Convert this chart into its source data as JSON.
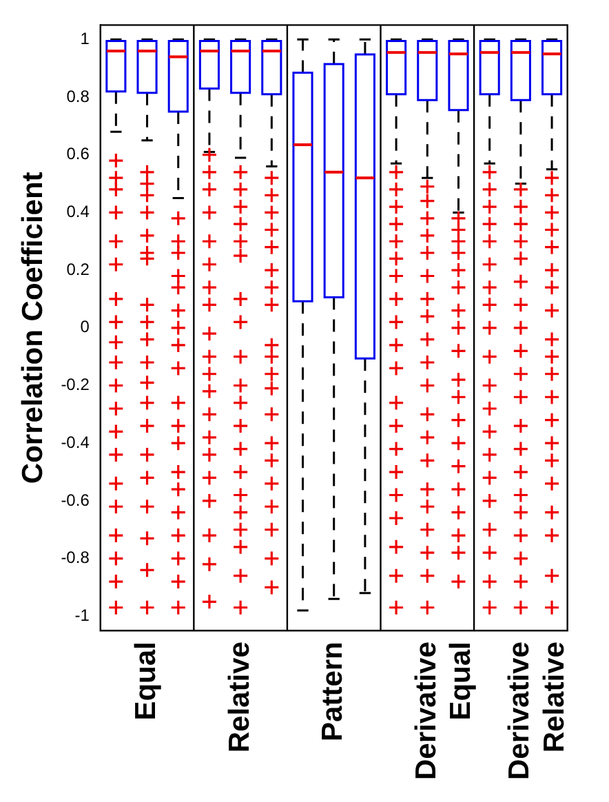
{
  "chart_data": {
    "type": "box",
    "ylabel": "Correlation Coefficient",
    "categories": [
      null,
      "Equal",
      null,
      null,
      "Relative",
      null,
      null,
      "Pattern",
      null,
      null,
      "Derivative\nEqual",
      null,
      null,
      "Derivative\nRelative",
      null
    ],
    "ylim": [
      -1.05,
      1.05
    ],
    "yticks": [
      -1,
      -0.8,
      -0.6,
      -0.4,
      -0.2,
      0,
      0.2,
      0.4,
      0.6,
      0.8,
      1
    ],
    "grid": false,
    "boxes": [
      {
        "low": 0.68,
        "q1": 0.82,
        "median": 0.96,
        "q3": 0.995,
        "high": 1,
        "outliers": [
          0.58,
          0.52,
          0.48,
          0.4,
          0.3,
          0.22,
          0.1,
          0.02,
          -0.05,
          -0.12,
          -0.2,
          -0.28,
          -0.36,
          -0.44,
          -0.54,
          -0.62,
          -0.72,
          -0.8,
          -0.88,
          -0.97
        ]
      },
      {
        "low": 0.65,
        "q1": 0.815,
        "median": 0.96,
        "q3": 0.995,
        "high": 1,
        "outliers": [
          0.54,
          0.5,
          0.46,
          0.4,
          0.32,
          0.26,
          0.24,
          0.08,
          0.02,
          -0.04,
          -0.12,
          -0.19,
          -0.26,
          -0.34,
          -0.44,
          -0.52,
          -0.62,
          -0.73,
          -0.84,
          -0.97
        ]
      },
      {
        "low": 0.45,
        "q1": 0.75,
        "median": 0.94,
        "q3": 0.995,
        "high": 1,
        "outliers": [
          0.38,
          0.3,
          0.26,
          0.18,
          0.14,
          0.06,
          0,
          -0.06,
          -0.14,
          -0.26,
          -0.34,
          -0.4,
          -0.5,
          -0.56,
          -0.64,
          -0.72,
          -0.8,
          -0.88,
          -0.97
        ]
      },
      {
        "low": 0.61,
        "q1": 0.83,
        "median": 0.96,
        "q3": 0.995,
        "high": 1,
        "outliers": [
          0.6,
          0.54,
          0.48,
          0.4,
          0.3,
          0.22,
          0.14,
          0.08,
          -0.02,
          -0.1,
          -0.16,
          -0.22,
          -0.3,
          -0.38,
          -0.44,
          -0.52,
          -0.6,
          -0.72,
          -0.82,
          -0.95
        ]
      },
      {
        "low": 0.59,
        "q1": 0.815,
        "median": 0.96,
        "q3": 0.995,
        "high": 1,
        "outliers": [
          0.54,
          0.48,
          0.42,
          0.36,
          0.3,
          0.25,
          0.1,
          0.02,
          -0.1,
          -0.2,
          -0.26,
          -0.34,
          -0.42,
          -0.5,
          -0.58,
          -0.64,
          -0.7,
          -0.76,
          -0.86,
          -0.97
        ]
      },
      {
        "low": 0.56,
        "q1": 0.81,
        "median": 0.96,
        "q3": 0.995,
        "high": 1,
        "outliers": [
          0.52,
          0.46,
          0.4,
          0.34,
          0.28,
          0.2,
          0.14,
          0.08,
          -0.06,
          -0.1,
          -0.16,
          -0.21,
          -0.3,
          -0.4,
          -0.46,
          -0.54,
          -0.62,
          -0.7,
          -0.8,
          -0.9
        ]
      },
      {
        "low": -0.98,
        "q1": 0.092,
        "median": 0.635,
        "q3": 0.885,
        "high": 1
      },
      {
        "low": -0.94,
        "q1": 0.106,
        "median": 0.54,
        "q3": 0.915,
        "high": 1
      },
      {
        "low": -0.92,
        "q1": -0.106,
        "median": 0.52,
        "q3": 0.948,
        "high": 1
      },
      {
        "low": 0.57,
        "q1": 0.81,
        "median": 0.955,
        "q3": 0.995,
        "high": 1,
        "outliers": [
          0.54,
          0.48,
          0.42,
          0.36,
          0.3,
          0.24,
          0.18,
          0.1,
          0.02,
          -0.06,
          -0.14,
          -0.26,
          -0.34,
          -0.42,
          -0.5,
          -0.58,
          -0.66,
          -0.76,
          -0.86,
          -0.97
        ]
      },
      {
        "low": 0.52,
        "q1": 0.79,
        "median": 0.955,
        "q3": 0.995,
        "high": 1,
        "outliers": [
          0.49,
          0.44,
          0.38,
          0.32,
          0.26,
          0.18,
          0.1,
          0.04,
          -0.04,
          -0.12,
          -0.2,
          -0.3,
          -0.38,
          -0.46,
          -0.56,
          -0.62,
          -0.7,
          -0.78,
          -0.86,
          -0.97
        ]
      },
      {
        "low": 0.4,
        "q1": 0.755,
        "median": 0.95,
        "q3": 0.995,
        "high": 1,
        "outliers": [
          0.38,
          0.34,
          0.3,
          0.26,
          0.2,
          0.14,
          0.06,
          0,
          -0.08,
          -0.18,
          -0.24,
          -0.32,
          -0.4,
          -0.48,
          -0.56,
          -0.64,
          -0.72,
          -0.78,
          -0.88
        ]
      },
      {
        "low": 0.57,
        "q1": 0.81,
        "median": 0.955,
        "q3": 0.995,
        "high": 1,
        "outliers": [
          0.54,
          0.48,
          0.42,
          0.36,
          0.3,
          0.22,
          0.14,
          0.08,
          0,
          -0.1,
          -0.2,
          -0.28,
          -0.36,
          -0.44,
          -0.52,
          -0.6,
          -0.7,
          -0.78,
          -0.88,
          -0.97
        ]
      },
      {
        "low": 0.5,
        "q1": 0.79,
        "median": 0.955,
        "q3": 0.995,
        "high": 1,
        "outliers": [
          0.48,
          0.42,
          0.36,
          0.3,
          0.24,
          0.16,
          0.08,
          0,
          -0.08,
          -0.16,
          -0.24,
          -0.34,
          -0.42,
          -0.5,
          -0.58,
          -0.64,
          -0.72,
          -0.8,
          -0.88,
          -0.97
        ]
      },
      {
        "low": 0.55,
        "q1": 0.81,
        "median": 0.95,
        "q3": 0.995,
        "high": 1,
        "outliers": [
          0.52,
          0.46,
          0.4,
          0.34,
          0.28,
          0.2,
          0.14,
          0.06,
          -0.04,
          -0.1,
          -0.16,
          -0.24,
          -0.32,
          -0.4,
          -0.46,
          -0.54,
          -0.64,
          -0.72,
          -0.86,
          -0.97
        ]
      }
    ]
  }
}
